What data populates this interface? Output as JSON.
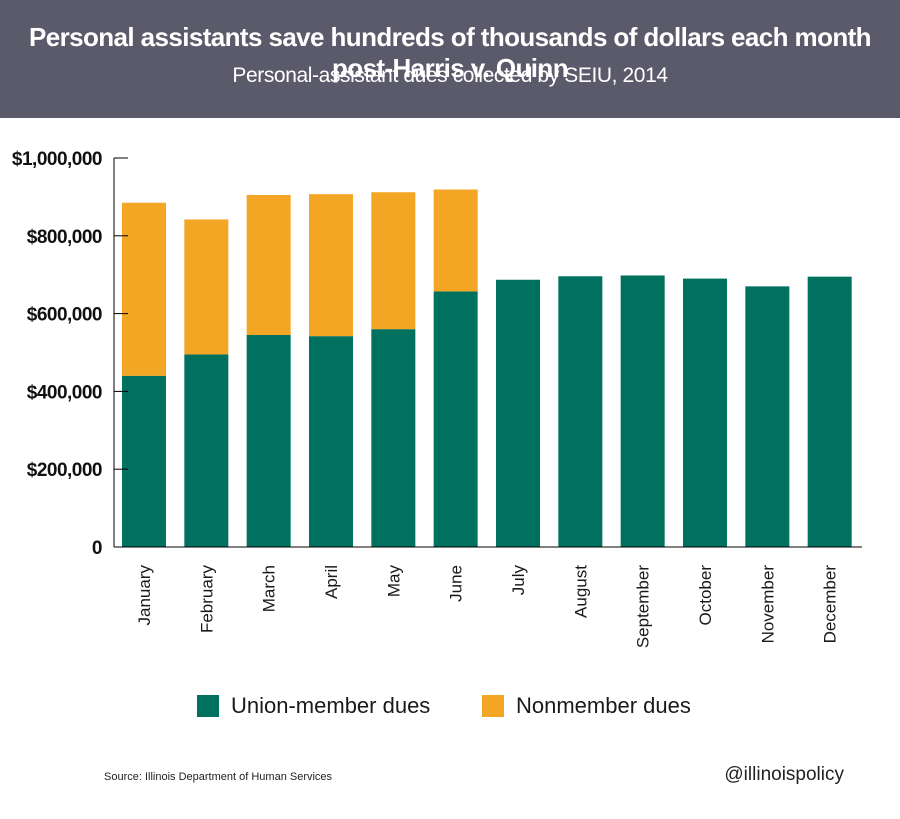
{
  "header": {
    "title": "Personal assistants save hundreds of thousands of dollars each month post-Harris v. Quinn",
    "subtitle": "Personal-assistant dues collected by SEIU, 2014"
  },
  "legend": {
    "member_label": "Union-member dues",
    "nonmember_label": "Nonmember dues"
  },
  "footer": {
    "source": "Source: Illinois Department of Human Services",
    "handle": "@illinoispolicy"
  },
  "colors": {
    "header_bg": "#5b5a6b",
    "member": "#00705f",
    "nonmember": "#f2a623"
  },
  "chart_data": {
    "type": "bar",
    "stacked": true,
    "categories": [
      "January",
      "February",
      "March",
      "April",
      "May",
      "June",
      "July",
      "August",
      "September",
      "October",
      "November",
      "December"
    ],
    "series": [
      {
        "name": "Union-member dues",
        "values": [
          440000,
          495000,
          545000,
          542000,
          560000,
          657000,
          687000,
          696000,
          698000,
          690000,
          670000,
          695000
        ]
      },
      {
        "name": "Nonmember dues",
        "values": [
          445000,
          347000,
          360000,
          365000,
          352000,
          262000,
          0,
          0,
          0,
          0,
          0,
          0
        ]
      }
    ],
    "ylim": [
      0,
      1000000
    ],
    "yticks": [
      0,
      200000,
      400000,
      600000,
      800000,
      1000000
    ],
    "ytick_labels": [
      "0",
      "$200,000",
      "$400,000",
      "$600,000",
      "$800,000",
      "$1,000,000"
    ],
    "grid": false,
    "legend_position": "bottom"
  }
}
